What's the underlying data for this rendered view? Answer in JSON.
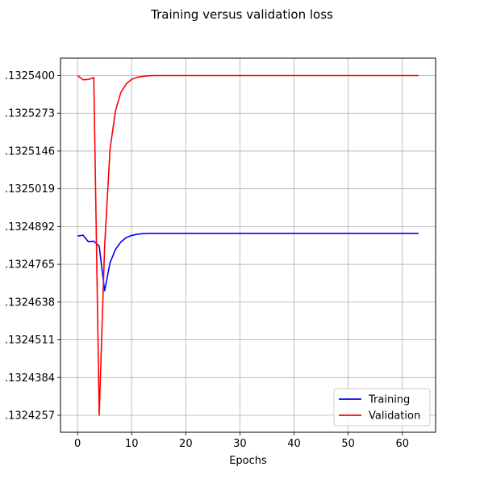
{
  "chart_data": {
    "type": "line",
    "title": "Training versus validation loss",
    "xlabel": "Epochs",
    "ylabel": "",
    "xlim": [
      -3.15,
      66.15
    ],
    "ylim": [
      1.13242,
      1.13254584
    ],
    "x_ticks": [
      0,
      10,
      20,
      30,
      40,
      50,
      60
    ],
    "x_tick_labels": [
      "0",
      "10",
      "20",
      "30",
      "40",
      "50",
      "60"
    ],
    "y_ticks": [
      1.1324257,
      1.1324384,
      1.1324511,
      1.1324638,
      1.1324765,
      1.1324892,
      1.1325019,
      1.1325146,
      1.1325273,
      1.13254
    ],
    "y_tick_labels": [
      ".1324257",
      ".1324384",
      ".1324511",
      ".1324638",
      ".1324765",
      ".1324892",
      ".1325019",
      ".1325146",
      ".1325273",
      ".1325400"
    ],
    "grid": true,
    "legend_position": "lower-right",
    "series": [
      {
        "name": "Training",
        "color": "#0000ff",
        "x": [
          0,
          1,
          2,
          3,
          4,
          5,
          6,
          7,
          8,
          9,
          10,
          11,
          12,
          13,
          14,
          15,
          16,
          17,
          18,
          19,
          20,
          21,
          22,
          23,
          24,
          25,
          26,
          27,
          28,
          29,
          30,
          31,
          32,
          33,
          34,
          35,
          36,
          37,
          38,
          39,
          40,
          41,
          42,
          43,
          44,
          45,
          46,
          47,
          48,
          49,
          50,
          51,
          52,
          53,
          54,
          55,
          56,
          57,
          58,
          59,
          60,
          61,
          62,
          63
        ],
        "y": [
          1.132486,
          1.1324863,
          1.1324841,
          1.1324843,
          1.1324826,
          1.1324676,
          1.132477,
          1.1324815,
          1.132484,
          1.1324855,
          1.1324862,
          1.1324866,
          1.1324868,
          1.1324869,
          1.1324869,
          1.1324869,
          1.1324869,
          1.1324869,
          1.1324869,
          1.1324869,
          1.1324869,
          1.1324869,
          1.1324869,
          1.1324869,
          1.1324869,
          1.1324869,
          1.1324869,
          1.1324869,
          1.1324869,
          1.1324869,
          1.1324869,
          1.1324869,
          1.1324869,
          1.1324869,
          1.1324869,
          1.1324869,
          1.1324869,
          1.1324869,
          1.1324869,
          1.1324869,
          1.1324869,
          1.1324869,
          1.1324869,
          1.1324869,
          1.1324869,
          1.1324869,
          1.1324869,
          1.1324869,
          1.1324869,
          1.1324869,
          1.1324869,
          1.1324869,
          1.1324869,
          1.1324869,
          1.1324869,
          1.1324869,
          1.1324869,
          1.1324869,
          1.1324869,
          1.1324869,
          1.1324869,
          1.1324869,
          1.1324869,
          1.1324869
        ]
      },
      {
        "name": "Validation",
        "color": "#ff0000",
        "x": [
          0,
          1,
          2,
          3,
          4,
          5,
          6,
          7,
          8,
          9,
          10,
          11,
          12,
          13,
          14,
          15,
          16,
          17,
          18,
          19,
          20,
          21,
          22,
          23,
          24,
          25,
          26,
          27,
          28,
          29,
          30,
          31,
          32,
          33,
          34,
          35,
          36,
          37,
          38,
          39,
          40,
          41,
          42,
          43,
          44,
          45,
          46,
          47,
          48,
          49,
          50,
          51,
          52,
          53,
          54,
          55,
          56,
          57,
          58,
          59,
          60,
          61,
          62,
          63
        ],
        "y": [
          1.13254,
          1.1325386,
          1.1325387,
          1.1325393,
          1.1324257,
          1.1324825,
          1.1325152,
          1.1325281,
          1.1325343,
          1.1325372,
          1.1325387,
          1.1325394,
          1.1325397,
          1.1325399,
          1.13254,
          1.13254,
          1.13254,
          1.13254,
          1.13254,
          1.13254,
          1.13254,
          1.13254,
          1.13254,
          1.13254,
          1.13254,
          1.13254,
          1.13254,
          1.13254,
          1.13254,
          1.13254,
          1.13254,
          1.13254,
          1.13254,
          1.13254,
          1.13254,
          1.13254,
          1.13254,
          1.13254,
          1.13254,
          1.13254,
          1.13254,
          1.13254,
          1.13254,
          1.13254,
          1.13254,
          1.13254,
          1.13254,
          1.13254,
          1.13254,
          1.13254,
          1.13254,
          1.13254,
          1.13254,
          1.13254,
          1.13254,
          1.13254,
          1.13254,
          1.13254,
          1.13254,
          1.13254,
          1.13254,
          1.13254,
          1.13254,
          1.13254
        ]
      }
    ]
  }
}
